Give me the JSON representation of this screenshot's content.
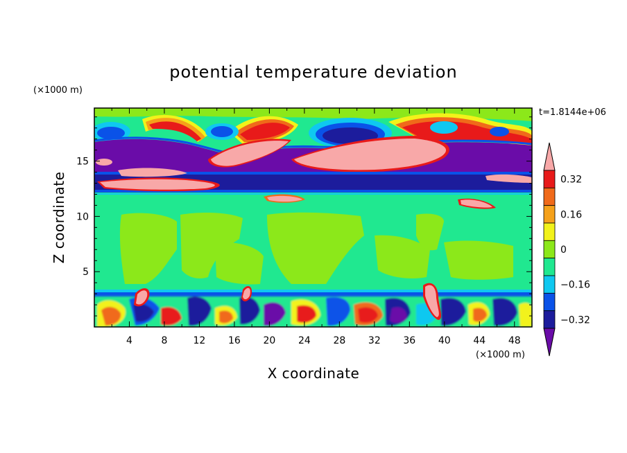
{
  "chart_data": {
    "type": "heatmap",
    "title": "potential temperature deviation",
    "time_label": "t=1.8144e+06",
    "xlabel": "X coordinate",
    "ylabel": "Z coordinate",
    "x_unit": "(×1000 m)",
    "y_unit": "(×1000 m)",
    "xlim": [
      0,
      50
    ],
    "ylim": [
      0,
      19.8
    ],
    "x_ticks": [
      4,
      8,
      12,
      16,
      20,
      24,
      28,
      32,
      36,
      40,
      44,
      48
    ],
    "y_ticks": [
      5,
      10,
      15
    ],
    "colorbar": {
      "labels": [
        0.32,
        0.16,
        0,
        -0.16,
        -0.32
      ],
      "label_text": [
        "0.32",
        "0.16",
        "0",
        "−0.16",
        "−0.32"
      ],
      "levels": [
        -0.4,
        -0.32,
        -0.24,
        -0.16,
        -0.08,
        0,
        0.08,
        0.16,
        0.24,
        0.32,
        0.4
      ],
      "colors": [
        "#6a0ca8",
        "#1c1c9c",
        "#0a52e8",
        "#0fc8f0",
        "#20e890",
        "#8ce81a",
        "#f2f21a",
        "#f5a11a",
        "#f06a1a",
        "#e81a1a",
        "#f8a8a8"
      ],
      "extend": "both"
    },
    "layers": [
      {
        "z": [
          0,
          3.6
        ],
        "description": "turbulent boundary layer with mixed positive and negative anomalies"
      },
      {
        "z": [
          3.6,
          12.2
        ],
        "value_range": [
          -0.08,
          0.08
        ]
      },
      {
        "z": [
          12.2,
          14.3
        ],
        "value_range": [
          -0.32,
          -0.16
        ]
      },
      {
        "z": [
          14.3,
          17.0
        ],
        "value_range": [
          -0.4,
          0.4
        ]
      },
      {
        "z": [
          17.0,
          19.8
        ],
        "value_range": [
          -0.16,
          0.32
        ]
      }
    ]
  }
}
